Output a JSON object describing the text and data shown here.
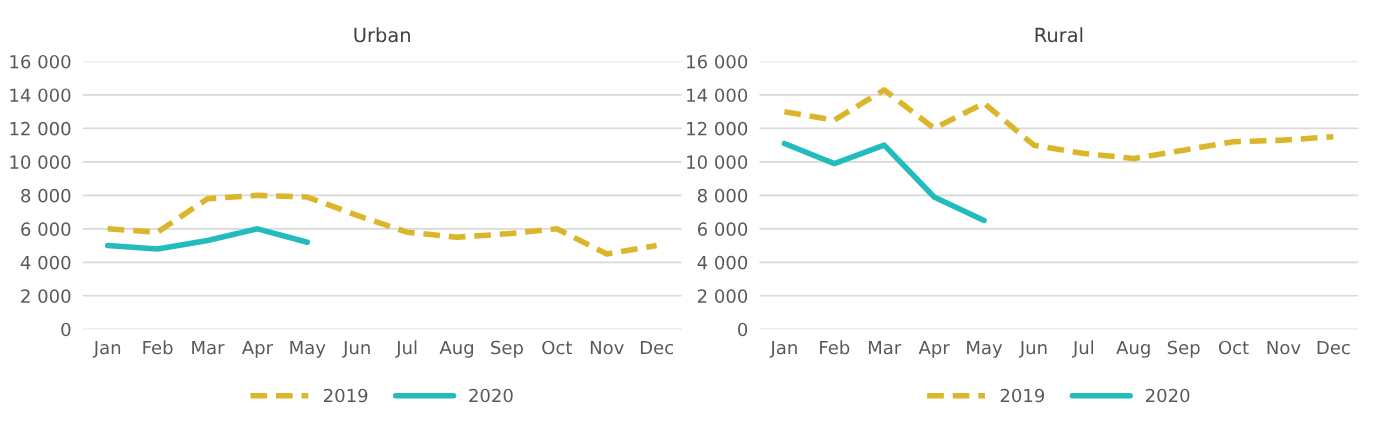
{
  "chart_data": [
    {
      "type": "line",
      "title": "Urban",
      "categories": [
        "Jan",
        "Feb",
        "Mar",
        "Apr",
        "May",
        "Jun",
        "Jul",
        "Aug",
        "Sep",
        "Oct",
        "Nov",
        "Dec"
      ],
      "series": [
        {
          "name": "2019",
          "color": "#dbb62a",
          "line_style": "dashed",
          "values": [
            6000,
            5800,
            7800,
            8000,
            7900,
            6800,
            5800,
            5500,
            5700,
            6000,
            4500,
            5000
          ]
        },
        {
          "name": "2020",
          "color": "#22bcbc",
          "line_style": "solid",
          "values": [
            5000,
            4800,
            5300,
            6000,
            5200,
            null,
            null,
            null,
            null,
            null,
            null,
            null
          ]
        }
      ],
      "ylim": [
        0,
        16000
      ],
      "yticks": [
        0,
        {
          "value": 2000,
          "label": "2 000"
        },
        {
          "value": 4000,
          "label": "4 000"
        },
        {
          "value": 6000,
          "label": "6 000"
        },
        {
          "value": 8000,
          "label": "8 000"
        },
        {
          "value": 10000,
          "label": "10 000"
        },
        {
          "value": 12000,
          "label": "12 000"
        },
        {
          "value": 14000,
          "label": "14 000"
        },
        {
          "value": 16000,
          "label": "16 000"
        }
      ],
      "grid": "y",
      "legend": "bottom"
    },
    {
      "type": "line",
      "title": "Rural",
      "categories": [
        "Jan",
        "Feb",
        "Mar",
        "Apr",
        "May",
        "Jun",
        "Jul",
        "Aug",
        "Sep",
        "Oct",
        "Nov",
        "Dec"
      ],
      "series": [
        {
          "name": "2019",
          "color": "#dbb62a",
          "line_style": "dashed",
          "values": [
            13000,
            12500,
            14300,
            12000,
            13500,
            11000,
            10500,
            10200,
            10700,
            11200,
            11300,
            11500
          ]
        },
        {
          "name": "2020",
          "color": "#22bcbc",
          "line_style": "solid",
          "values": [
            11100,
            9900,
            11000,
            7900,
            6500,
            null,
            null,
            null,
            null,
            null,
            null,
            null
          ]
        }
      ],
      "ylim": [
        0,
        16000
      ],
      "yticks": [
        0,
        {
          "value": 2000,
          "label": "2 000"
        },
        {
          "value": 4000,
          "label": "4 000"
        },
        {
          "value": 6000,
          "label": "6 000"
        },
        {
          "value": 8000,
          "label": "8 000"
        },
        {
          "value": 10000,
          "label": "10 000"
        },
        {
          "value": 12000,
          "label": "12 000"
        },
        {
          "value": 14000,
          "label": "14 000"
        },
        {
          "value": 16000,
          "label": "16 000"
        }
      ],
      "grid": "y",
      "legend": "bottom"
    }
  ]
}
